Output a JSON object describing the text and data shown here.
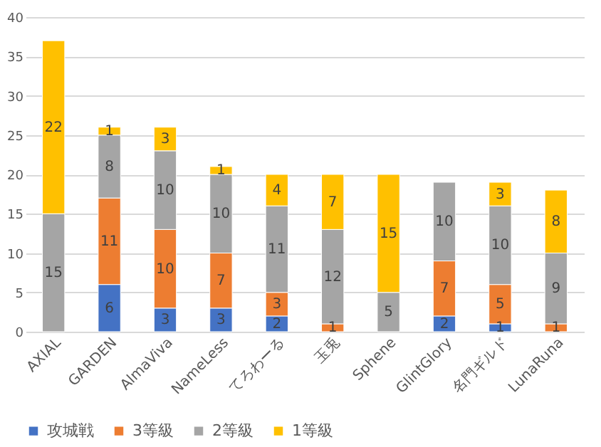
{
  "chart_data": {
    "type": "bar",
    "stacked": true,
    "data_labels": true,
    "grid": "y",
    "legend": "bottom",
    "categories": [
      "AXIAL",
      "GARDEN",
      "AlmaViva",
      "NameLess",
      "てろわーる",
      "玉兎",
      "Sphene",
      "GlintGlory",
      "名門ギルド",
      "LunaRuna"
    ],
    "series": [
      {
        "name": "攻城戦",
        "color": "#4472c4",
        "values": [
          null,
          6,
          3,
          3,
          2,
          null,
          null,
          2,
          1,
          null
        ]
      },
      {
        "name": "3等級",
        "color": "#ed7d31",
        "values": [
          null,
          11,
          10,
          7,
          3,
          1,
          null,
          7,
          5,
          1
        ]
      },
      {
        "name": "2等級",
        "color": "#a5a5a5",
        "values": [
          15,
          8,
          10,
          10,
          11,
          12,
          5,
          10,
          10,
          9
        ]
      },
      {
        "name": "1等級",
        "color": "#ffc000",
        "values": [
          22,
          1,
          3,
          1,
          4,
          7,
          15,
          null,
          3,
          8
        ]
      }
    ],
    "ylim": [
      0,
      40
    ],
    "yticks": [
      0,
      5,
      10,
      15,
      20,
      25,
      30,
      35,
      40
    ]
  }
}
